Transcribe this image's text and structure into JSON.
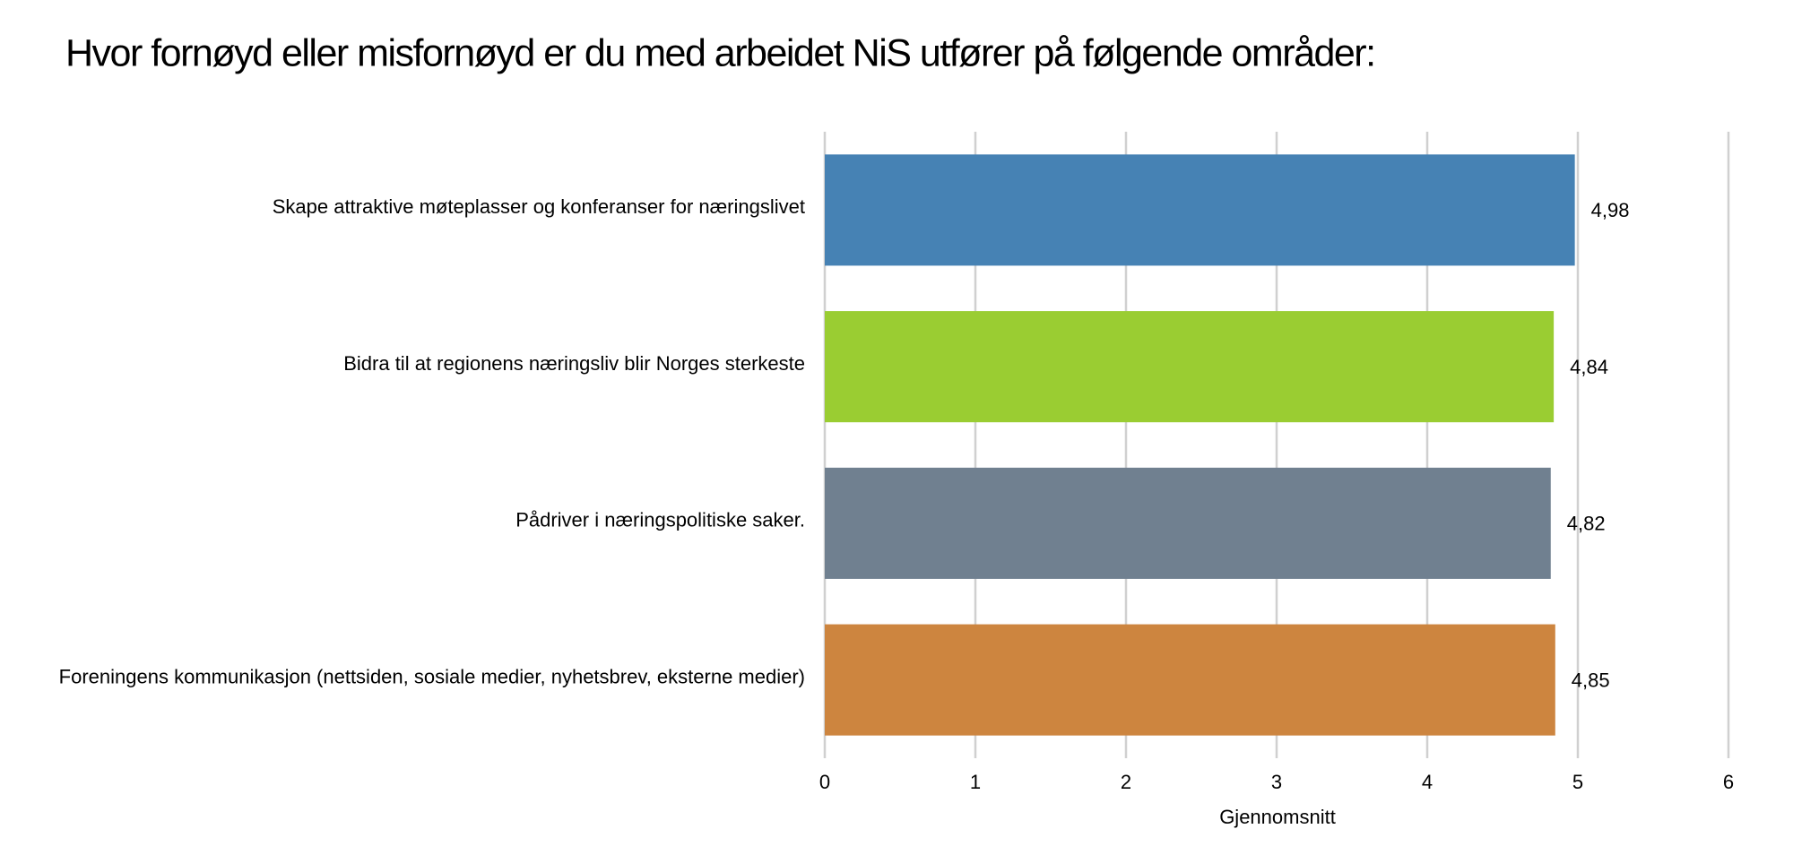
{
  "chart_data": {
    "type": "barh",
    "title": "Hvor fornøyd eller misfornøyd er du med arbeidet NiS utfører på følgende områder:",
    "categories": [
      "Skape attraktive møteplasser og konferanser for næringslivet",
      "Bidra til at regionens næringsliv blir Norges sterkeste",
      "Pådriver i næringspolitiske saker.",
      "Foreningens kommunikasjon (nettsiden, sosiale medier, nyhetsbrev, eksterne medier)"
    ],
    "values": [
      4.98,
      4.84,
      4.82,
      4.85
    ],
    "value_labels": [
      "4,98",
      "4,84",
      "4,82",
      "4,85"
    ],
    "colors": [
      "#4682b4",
      "#9acd32",
      "#708090",
      "#cd853f"
    ],
    "xlabel": "Gjennomsnitt",
    "xlim": [
      0,
      6
    ],
    "xticks": [
      0,
      1,
      2,
      3,
      4,
      5,
      6
    ],
    "grid": true
  }
}
